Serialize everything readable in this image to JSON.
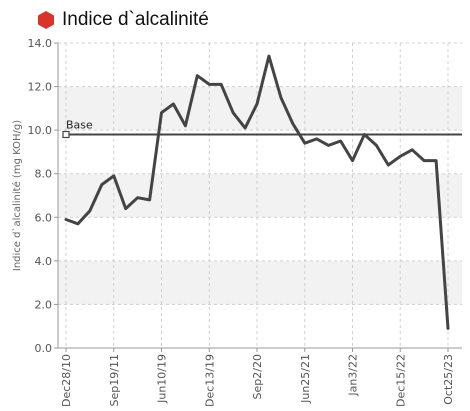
{
  "header": {
    "title": "Indice d`alcalinité",
    "icon": "hexagon-icon",
    "icon_color": "#d9342b"
  },
  "chart_data": {
    "type": "line",
    "ylabel": "Indice d`alcalinité (mg KOH/g)",
    "xlabel": "",
    "ylim": [
      0,
      14
    ],
    "yticks": [
      "0.0",
      "2.0",
      "4.0",
      "6.0",
      "8.0",
      "10.0",
      "12.0",
      "14.0"
    ],
    "xtick_labels": [
      "Dec28/10",
      "Sep19/11",
      "Jun10/19",
      "Dec13/19",
      "Sep2/20",
      "Jun25/21",
      "Jan3/22",
      "Dec15/22",
      "Oct25/23"
    ],
    "grid": true,
    "series": [
      {
        "color": "#444444",
        "values": [
          5.9,
          5.7,
          6.3,
          7.5,
          7.9,
          6.4,
          6.9,
          6.8,
          10.8,
          11.2,
          10.2,
          12.5,
          12.1,
          12.1,
          10.8,
          10.1,
          11.2,
          13.4,
          11.5,
          10.3,
          9.4,
          9.6,
          9.3,
          9.5,
          8.6,
          9.8,
          9.3,
          8.4,
          8.8,
          9.1,
          8.6,
          8.6,
          0.9
        ]
      }
    ],
    "reference_line": {
      "label": "Base",
      "value": 9.8,
      "color": "#444444"
    }
  }
}
